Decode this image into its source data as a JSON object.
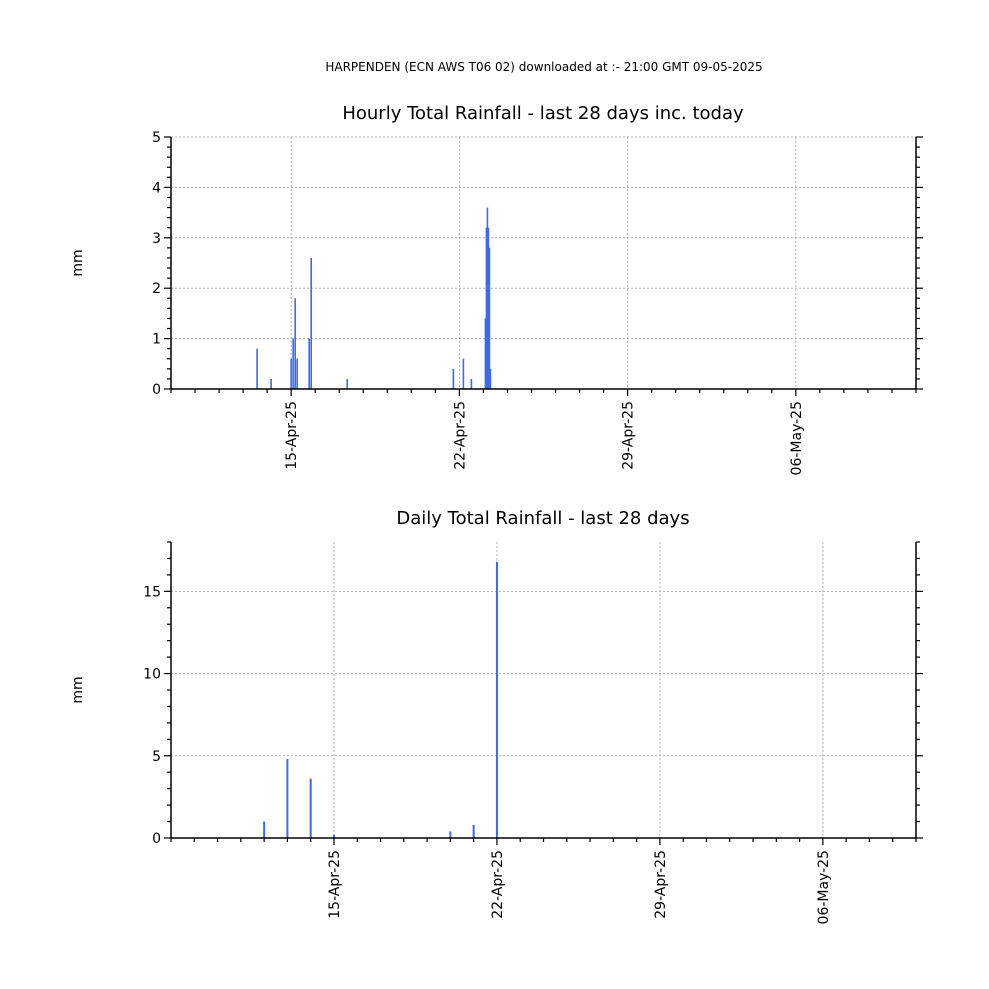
{
  "header": "HARPENDEN (ECN AWS T06 02) downloaded at :- 21:00 GMT 09-05-2025",
  "colors": {
    "bar": "#4169E1",
    "grid": "#b0b0b0",
    "axis": "#000000"
  },
  "chart_data": [
    {
      "type": "bar",
      "title": "Hourly Total Rainfall - last 28 days inc. today",
      "ylabel": "mm",
      "xlabel": "",
      "x_unit": "days",
      "xlim": [
        "2025-04-10",
        "2025-05-11"
      ],
      "ylim": [
        0,
        5
      ],
      "yticks": [
        0,
        1,
        2,
        3,
        4,
        5
      ],
      "xticks": [
        {
          "date": "2025-04-15",
          "label": "15-Apr-25"
        },
        {
          "date": "2025-04-22",
          "label": "22-Apr-25"
        },
        {
          "date": "2025-04-29",
          "label": "29-Apr-25"
        },
        {
          "date": "2025-05-06",
          "label": "06-May-25"
        }
      ],
      "grid": true,
      "points": [
        {
          "x": "2025-04-13 14:00",
          "y": 0.8
        },
        {
          "x": "2025-04-14 04:00",
          "y": 0.2
        },
        {
          "x": "2025-04-15 00:00",
          "y": 0.6
        },
        {
          "x": "2025-04-15 02:00",
          "y": 1.0
        },
        {
          "x": "2025-04-15 04:00",
          "y": 1.8
        },
        {
          "x": "2025-04-15 06:00",
          "y": 0.6
        },
        {
          "x": "2025-04-15 18:00",
          "y": 1.0
        },
        {
          "x": "2025-04-15 20:00",
          "y": 2.6
        },
        {
          "x": "2025-04-17 08:00",
          "y": 0.2
        },
        {
          "x": "2025-04-21 18:00",
          "y": 0.4
        },
        {
          "x": "2025-04-22 04:00",
          "y": 0.6
        },
        {
          "x": "2025-04-22 12:00",
          "y": 0.2
        },
        {
          "x": "2025-04-23 02:00",
          "y": 1.4
        },
        {
          "x": "2025-04-23 03:00",
          "y": 3.2
        },
        {
          "x": "2025-04-23 04:00",
          "y": 3.6
        },
        {
          "x": "2025-04-23 05:00",
          "y": 3.2
        },
        {
          "x": "2025-04-23 06:00",
          "y": 2.8
        },
        {
          "x": "2025-04-23 07:00",
          "y": 0.4
        }
      ]
    },
    {
      "type": "bar",
      "title": "Daily Total Rainfall - last 28 days",
      "ylabel": "mm",
      "xlabel": "",
      "x_unit": "days",
      "xlim": [
        "2025-04-08",
        "2025-05-10"
      ],
      "ylim": [
        0,
        18
      ],
      "yticks": [
        0,
        5,
        10,
        15
      ],
      "xticks": [
        {
          "date": "2025-04-15",
          "label": "15-Apr-25"
        },
        {
          "date": "2025-04-22",
          "label": "22-Apr-25"
        },
        {
          "date": "2025-04-29",
          "label": "29-Apr-25"
        },
        {
          "date": "2025-05-06",
          "label": "06-May-25"
        }
      ],
      "grid": true,
      "points": [
        {
          "x": "2025-04-12",
          "y": 1.0
        },
        {
          "x": "2025-04-13",
          "y": 4.8
        },
        {
          "x": "2025-04-14",
          "y": 3.6
        },
        {
          "x": "2025-04-15",
          "y": 0.2
        },
        {
          "x": "2025-04-20",
          "y": 0.4
        },
        {
          "x": "2025-04-21",
          "y": 0.8
        },
        {
          "x": "2025-04-22",
          "y": 16.8
        }
      ]
    }
  ]
}
